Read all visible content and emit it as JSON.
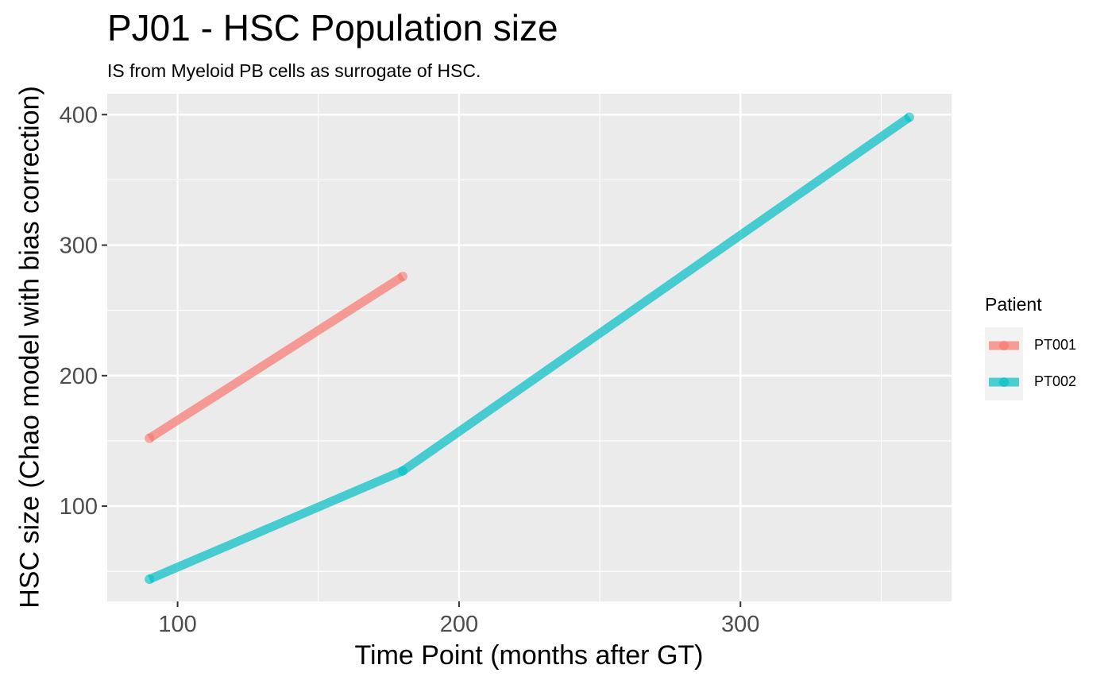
{
  "chart_data": {
    "type": "line",
    "title": "PJ01 - HSC Population size",
    "subtitle": "IS from Myeloid PB cells as surrogate of HSC.",
    "xlabel": "Time Point (months after GT)",
    "ylabel": "HSC size (Chao model with bias correction)",
    "xlim": [
      75,
      375
    ],
    "ylim": [
      27,
      416
    ],
    "x_ticks": [
      100,
      200,
      300
    ],
    "y_ticks": [
      100,
      200,
      300,
      400
    ],
    "grid": true,
    "legend": {
      "title": "Patient",
      "placement": "right"
    },
    "series": [
      {
        "name": "PT001",
        "color": "#F8766D",
        "x": [
          90,
          180
        ],
        "y": [
          152,
          276
        ]
      },
      {
        "name": "PT002",
        "color": "#00BFC4",
        "x": [
          90,
          180,
          360
        ],
        "y": [
          44,
          127,
          398
        ]
      }
    ]
  }
}
